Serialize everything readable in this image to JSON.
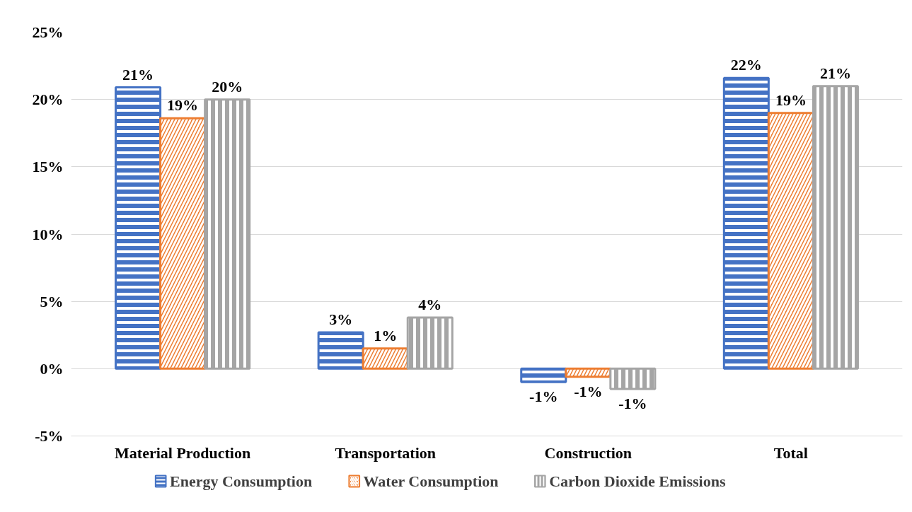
{
  "chart_data": {
    "type": "bar",
    "categories": [
      "Material Production",
      "Transportation",
      "Construction",
      "Total"
    ],
    "series": [
      {
        "name": "Energy Consumption",
        "color": "#4472c4",
        "values": [
          20.9,
          2.7,
          -1.0,
          21.6
        ],
        "value_labels": [
          "21%",
          "3%",
          "-1%",
          "22%"
        ]
      },
      {
        "name": "Water Consumption",
        "color": "#ed7d31",
        "values": [
          18.6,
          1.5,
          -0.6,
          19.0
        ],
        "value_labels": [
          "19%",
          "1%",
          "-1%",
          "19%"
        ]
      },
      {
        "name": "Carbon Dioxide Emissions",
        "color": "#a5a5a5",
        "values": [
          20.0,
          3.8,
          -1.5,
          21.0
        ],
        "value_labels": [
          "20%",
          "4%",
          "-1%",
          "21%"
        ]
      }
    ],
    "ylim": [
      -5,
      25
    ],
    "yticks": [
      {
        "value": -5,
        "label": "-5%"
      },
      {
        "value": 0,
        "label": "0%"
      },
      {
        "value": 5,
        "label": "5%"
      },
      {
        "value": 10,
        "label": "10%"
      },
      {
        "value": 15,
        "label": "15%"
      },
      {
        "value": 20,
        "label": "20%"
      },
      {
        "value": 25,
        "label": "25%"
      }
    ],
    "grid": "y",
    "legend": "bottom"
  }
}
